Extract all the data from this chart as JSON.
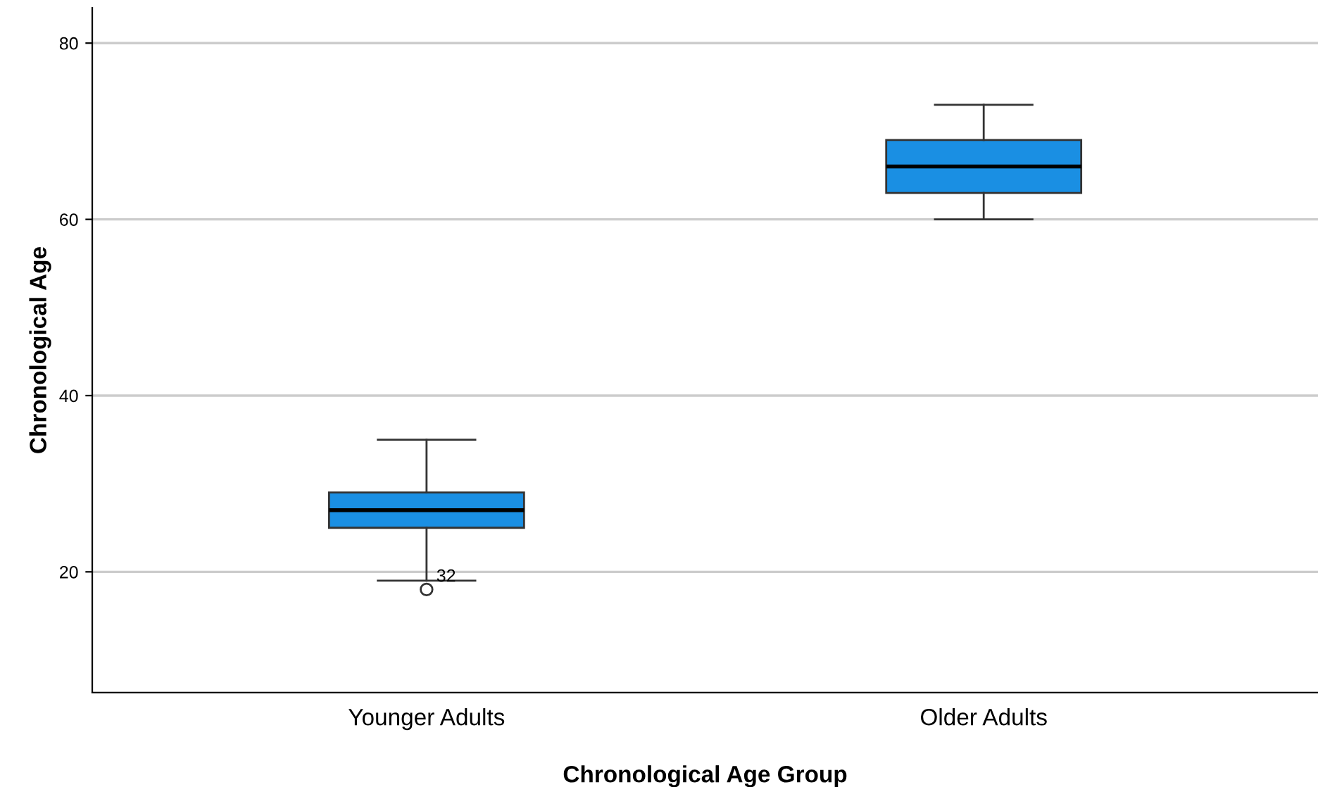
{
  "chart_data": {
    "type": "box",
    "xlabel": "Chronological Age Group",
    "ylabel": "Chronological Age",
    "categories": [
      "Younger Adults",
      "Older Adults"
    ],
    "boxes": [
      {
        "low": 19,
        "q1": 25,
        "median": 27,
        "q3": 29,
        "high": 35,
        "outliers": [
          18
        ]
      },
      {
        "low": 60,
        "q1": 63,
        "median": 66,
        "q3": 69,
        "high": 73
      }
    ],
    "color": "#1a8fe3",
    "ylim": [
      6.3,
      84
    ],
    "yticks": [
      20,
      40,
      60,
      80
    ],
    "grid": "y",
    "annotations": [
      "32"
    ]
  }
}
